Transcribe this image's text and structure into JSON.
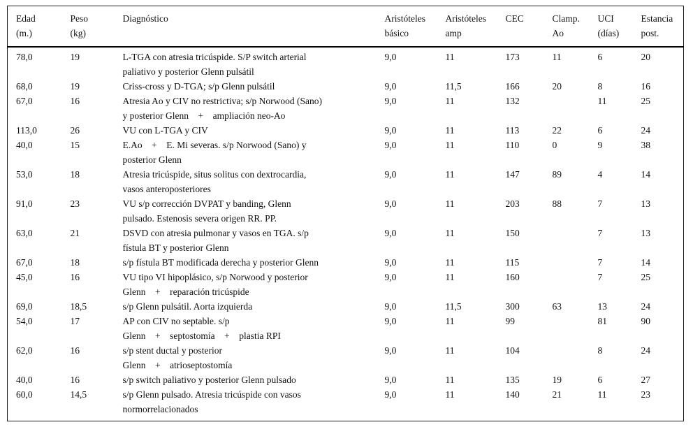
{
  "table": {
    "columns": [
      {
        "key": "edad",
        "label": "Edad\n(m.)"
      },
      {
        "key": "peso",
        "label": "Peso\n(kg)"
      },
      {
        "key": "diagnostico",
        "label": "Diagnóstico"
      },
      {
        "key": "aristoteles_basico",
        "label": "Aristóteles\nbásico"
      },
      {
        "key": "aristoteles_amp",
        "label": "Aristóteles\namp"
      },
      {
        "key": "cec",
        "label": "CEC"
      },
      {
        "key": "clamp_ao",
        "label": "Clamp.\nAo"
      },
      {
        "key": "uci",
        "label": "UCI\n(días)"
      },
      {
        "key": "estancia_post",
        "label": "Estancia\npost."
      }
    ],
    "rows": [
      {
        "edad": "78,0",
        "peso": "19",
        "diagnostico": "L-TGA con atresia tricúspide. S/P switch arterial\npaliativo y posterior Glenn pulsátil",
        "aristoteles_basico": "9,0",
        "aristoteles_amp": "11",
        "cec": "173",
        "clamp_ao": "11",
        "uci": "6",
        "estancia_post": "20"
      },
      {
        "edad": "68,0",
        "peso": "19",
        "diagnostico": "Criss-cross y D-TGA; s/p Glenn pulsátil",
        "aristoteles_basico": "9,0",
        "aristoteles_amp": "11,5",
        "cec": "166",
        "clamp_ao": "20",
        "uci": "8",
        "estancia_post": "16"
      },
      {
        "edad": "67,0",
        "peso": "16",
        "diagnostico": "Atresia Ao y CIV no restrictiva; s/p Norwood (Sano)\ny posterior Glenn    +    ampliación neo-Ao",
        "aristoteles_basico": "9,0",
        "aristoteles_amp": "11",
        "cec": "132",
        "clamp_ao": "",
        "uci": "11",
        "estancia_post": "25"
      },
      {
        "edad": "113,0",
        "peso": "26",
        "diagnostico": "VU con L-TGA y CIV",
        "aristoteles_basico": "9,0",
        "aristoteles_amp": "11",
        "cec": "113",
        "clamp_ao": "22",
        "uci": "6",
        "estancia_post": "24"
      },
      {
        "edad": "40,0",
        "peso": "15",
        "diagnostico": "E.Ao    +    E. Mi severas. s/p Norwood (Sano) y\nposterior Glenn",
        "aristoteles_basico": "9,0",
        "aristoteles_amp": "11",
        "cec": "110",
        "clamp_ao": "0",
        "uci": "9",
        "estancia_post": "38"
      },
      {
        "edad": "53,0",
        "peso": "18",
        "diagnostico": "Atresia tricúspide, situs solitus con dextrocardia,\nvasos anteroposteriores",
        "aristoteles_basico": "9,0",
        "aristoteles_amp": "11",
        "cec": "147",
        "clamp_ao": "89",
        "uci": "4",
        "estancia_post": "14"
      },
      {
        "edad": "91,0",
        "peso": "23",
        "diagnostico": "VU s/p corrección DVPAT y banding, Glenn\npulsado. Estenosis severa origen RR. PP.",
        "aristoteles_basico": "9,0",
        "aristoteles_amp": "11",
        "cec": "203",
        "clamp_ao": "88",
        "uci": "7",
        "estancia_post": "13"
      },
      {
        "edad": "63,0",
        "peso": "21",
        "diagnostico": "DSVD con atresia pulmonar y vasos en TGA. s/p\nfístula BT y posterior Glenn",
        "aristoteles_basico": "9,0",
        "aristoteles_amp": "11",
        "cec": "150",
        "clamp_ao": "",
        "uci": "7",
        "estancia_post": "13"
      },
      {
        "edad": "67,0",
        "peso": "18",
        "diagnostico": "s/p fístula BT modificada derecha y posterior Glenn",
        "aristoteles_basico": "9,0",
        "aristoteles_amp": "11",
        "cec": "115",
        "clamp_ao": "",
        "uci": "7",
        "estancia_post": "14"
      },
      {
        "edad": "45,0",
        "peso": "16",
        "diagnostico": "VU tipo VI hipoplásico, s/p Norwood y posterior\nGlenn    +    reparación tricúspide",
        "aristoteles_basico": "9,0",
        "aristoteles_amp": "11",
        "cec": "160",
        "clamp_ao": "",
        "uci": "7",
        "estancia_post": "25"
      },
      {
        "edad": "69,0",
        "peso": "18,5",
        "diagnostico": "s/p Glenn pulsátil. Aorta izquierda",
        "aristoteles_basico": "9,0",
        "aristoteles_amp": "11,5",
        "cec": "300",
        "clamp_ao": "63",
        "uci": "13",
        "estancia_post": "24"
      },
      {
        "edad": "54,0",
        "peso": "17",
        "diagnostico": "AP con CIV no septable. s/p\nGlenn    +    septostomía    +    plastia RPI",
        "aristoteles_basico": "9,0",
        "aristoteles_amp": "11",
        "cec": "99",
        "clamp_ao": "",
        "uci": "81",
        "estancia_post": "90"
      },
      {
        "edad": "62,0",
        "peso": "16",
        "diagnostico": "s/p stent ductal y posterior\nGlenn    +    atrioseptostomía",
        "aristoteles_basico": "9,0",
        "aristoteles_amp": "11",
        "cec": "104",
        "clamp_ao": "",
        "uci": "8",
        "estancia_post": "24"
      },
      {
        "edad": "40,0",
        "peso": "16",
        "diagnostico": "s/p switch paliativo y posterior Glenn pulsado",
        "aristoteles_basico": "9,0",
        "aristoteles_amp": "11",
        "cec": "135",
        "clamp_ao": "19",
        "uci": "6",
        "estancia_post": "27"
      },
      {
        "edad": "60,0",
        "peso": "14,5",
        "diagnostico": "s/p Glenn pulsado. Atresia tricúspide con vasos\nnormorrelacionados",
        "aristoteles_basico": "9,0",
        "aristoteles_amp": "11",
        "cec": "140",
        "clamp_ao": "21",
        "uci": "11",
        "estancia_post": "23"
      }
    ]
  }
}
